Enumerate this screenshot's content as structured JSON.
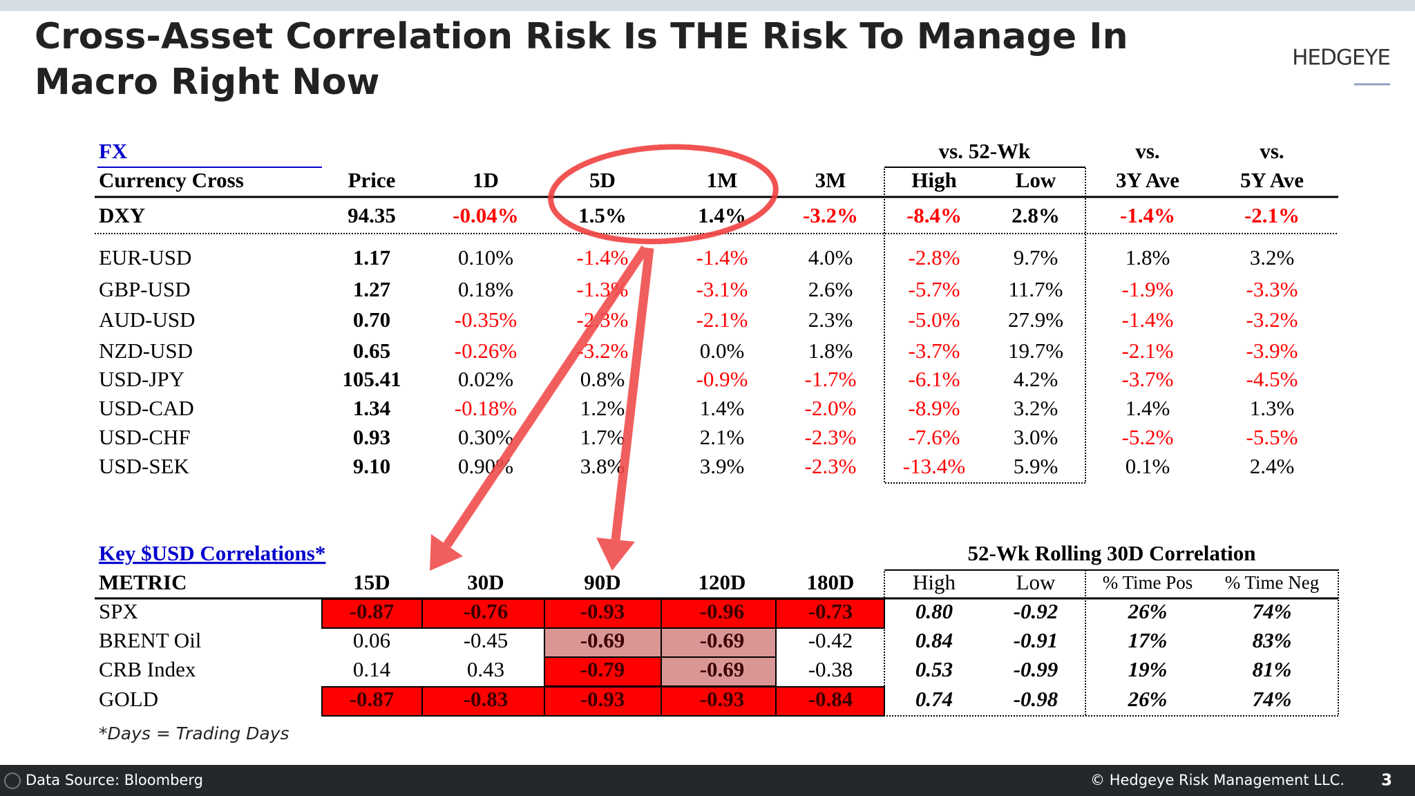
{
  "header": {
    "title_lines": [
      "Cross-Asset Correlation Risk Is THE Risk To Manage In",
      "Macro Right Now"
    ],
    "logo": "HEDGEYE"
  },
  "fx": {
    "section": "FX",
    "groups": [
      "vs. 52-Wk",
      "vs.",
      "vs."
    ],
    "columns": [
      "Currency Cross",
      "Price",
      "1D",
      "5D",
      "1M",
      "3M",
      "High",
      "Low",
      "3Y Ave",
      "5Y Ave"
    ],
    "rows": [
      [
        "DXY",
        "94.35",
        "-0.04%",
        "1.5%",
        "1.4%",
        "-3.2%",
        "-8.4%",
        "2.8%",
        "-1.4%",
        "-2.1%"
      ],
      [
        "EUR-USD",
        "1.17",
        "0.10%",
        "-1.4%",
        "-1.4%",
        "4.0%",
        "-2.8%",
        "9.7%",
        "1.8%",
        "3.2%"
      ],
      [
        "GBP-USD",
        "1.27",
        "0.18%",
        "-1.3%",
        "-3.1%",
        "2.6%",
        "-5.7%",
        "11.7%",
        "-1.9%",
        "-3.3%"
      ],
      [
        "AUD-USD",
        "0.70",
        "-0.35%",
        "-2.3%",
        "-2.1%",
        "2.3%",
        "-5.0%",
        "27.9%",
        "-1.4%",
        "-3.2%"
      ],
      [
        "NZD-USD",
        "0.65",
        "-0.26%",
        "-3.2%",
        "0.0%",
        "1.8%",
        "-3.7%",
        "19.7%",
        "-2.1%",
        "-3.9%"
      ],
      [
        "USD-JPY",
        "105.41",
        "0.02%",
        "0.8%",
        "-0.9%",
        "-1.7%",
        "-6.1%",
        "4.2%",
        "-3.7%",
        "-4.5%"
      ],
      [
        "USD-CAD",
        "1.34",
        "-0.18%",
        "1.2%",
        "1.4%",
        "-2.0%",
        "-8.9%",
        "3.2%",
        "1.4%",
        "1.3%"
      ],
      [
        "USD-CHF",
        "0.93",
        "0.30%",
        "1.7%",
        "2.1%",
        "-2.3%",
        "-7.6%",
        "3.0%",
        "-5.2%",
        "-5.5%"
      ],
      [
        "USD-SEK",
        "9.10",
        "0.90%",
        "3.8%",
        "3.9%",
        "-2.3%",
        "-13.4%",
        "5.9%",
        "0.1%",
        "2.4%"
      ]
    ]
  },
  "correlations": {
    "title": "Key $USD Correlations*",
    "group": "52-Wk Rolling 30D Correlation",
    "columns": [
      "METRIC",
      "15D",
      "30D",
      "90D",
      "120D",
      "180D",
      "High",
      "Low",
      "% Time Pos",
      "% Time Neg"
    ],
    "rows": [
      [
        "SPX",
        "-0.87",
        "-0.76",
        "-0.93",
        "-0.96",
        "-0.73",
        "0.80",
        "-0.92",
        "26%",
        "74%"
      ],
      [
        "BRENT Oil",
        "0.06",
        "-0.45",
        "-0.69",
        "-0.69",
        "-0.42",
        "0.84",
        "-0.91",
        "17%",
        "83%"
      ],
      [
        "CRB Index",
        "0.14",
        "0.43",
        "-0.79",
        "-0.69",
        "-0.38",
        "0.53",
        "-0.99",
        "19%",
        "81%"
      ],
      [
        "GOLD",
        "-0.87",
        "-0.83",
        "-0.93",
        "-0.93",
        "-0.84",
        "0.74",
        "-0.98",
        "26%",
        "74%"
      ]
    ],
    "cell_colors": [
      [
        "#ff0000",
        "#ff0000",
        "#ff0000",
        "#ff0000",
        "#ff0000"
      ],
      [
        null,
        null,
        "#da9694",
        "#da9694",
        null
      ],
      [
        null,
        null,
        "#ff0000",
        "#da9694",
        null
      ],
      [
        "#ff0000",
        "#ff0000",
        "#ff0000",
        "#ff0000",
        "#ff0000"
      ]
    ],
    "note": "*Days = Trading Days"
  },
  "footer": {
    "source": "Data Source: Bloomberg",
    "copyright": "© Hedgeye Risk Management LLC.",
    "page": "3"
  }
}
